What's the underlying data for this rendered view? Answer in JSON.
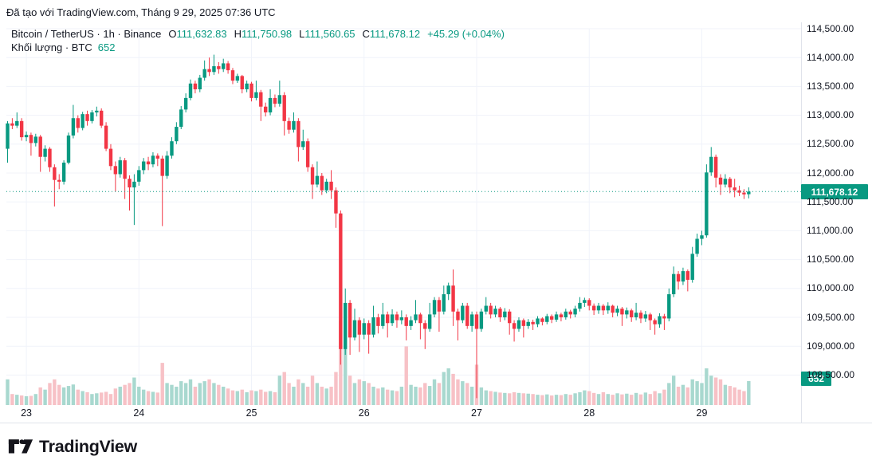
{
  "attribution": "Đã tạo với TradingView.com, Tháng 9 29, 2025 07:36 UTC",
  "legend": {
    "symbol_line": "Bitcoin / TetherUS · 1h · Binance",
    "o_label": "O",
    "o_value": "111,632.83",
    "h_label": "H",
    "h_value": "111,750.98",
    "l_label": "L",
    "l_value": "111,560.65",
    "c_label": "C",
    "c_value": "111,678.12",
    "change": "+45.29 (+0.04%)",
    "volume_label": "Khối lượng · BTC",
    "volume_value": "652"
  },
  "badges": {
    "price": "111,678.12",
    "volume": "652"
  },
  "logo_text": "TradingView",
  "colors": {
    "up": "#089981",
    "down": "#f23645",
    "vol_up": "#a8d8cf",
    "vol_down": "#f7c1c6",
    "grid": "#f0f3fa",
    "axis_text": "#131722",
    "badge": "#089981",
    "current_price_line": "#089981"
  },
  "chart_data": {
    "type": "candlestick",
    "title": "Bitcoin / TetherUS · 1h · Binance",
    "interval": "1h",
    "current_price": 111678.12,
    "current_volume_btc": 652,
    "y_axis": {
      "max": 114500,
      "min": 108500,
      "step": 500,
      "labels": [
        "114,500.00",
        "114,000.00",
        "113,500.00",
        "113,000.00",
        "112,500.00",
        "112,000.00",
        "111,500.00",
        "111,000.00",
        "110,500.00",
        "110,000.00",
        "109,500.00",
        "109,000.00",
        "108,500.00"
      ]
    },
    "x_axis": {
      "labels": [
        {
          "text": "23",
          "index": 4
        },
        {
          "text": "24",
          "index": 28
        },
        {
          "text": "25",
          "index": 52
        },
        {
          "text": "26",
          "index": 76
        },
        {
          "text": "27",
          "index": 100
        },
        {
          "text": "28",
          "index": 124
        },
        {
          "text": "29",
          "index": 148
        }
      ]
    },
    "candles_format": [
      "open",
      "high",
      "low",
      "close",
      "volume_btc"
    ],
    "candles": [
      [
        112420,
        112900,
        112180,
        112860,
        700
      ],
      [
        112860,
        112950,
        112760,
        112820,
        300
      ],
      [
        112820,
        113050,
        112780,
        112900,
        280
      ],
      [
        112900,
        112950,
        112560,
        112620,
        260
      ],
      [
        112620,
        112720,
        112550,
        112660,
        240
      ],
      [
        112660,
        112700,
        112300,
        112520,
        250
      ],
      [
        112520,
        112680,
        112460,
        112630,
        300
      ],
      [
        112630,
        112660,
        112020,
        112280,
        480
      ],
      [
        112280,
        112480,
        112200,
        112420,
        420
      ],
      [
        112420,
        112450,
        112020,
        112100,
        600
      ],
      [
        112100,
        112150,
        111420,
        111880,
        700
      ],
      [
        111880,
        111980,
        111720,
        111850,
        550
      ],
      [
        111850,
        112220,
        111800,
        112180,
        480
      ],
      [
        112180,
        112700,
        112150,
        112650,
        520
      ],
      [
        112650,
        113180,
        112600,
        112950,
        560
      ],
      [
        112950,
        113000,
        112700,
        112780,
        420
      ],
      [
        112780,
        113060,
        112740,
        113020,
        380
      ],
      [
        113020,
        113080,
        112820,
        112900,
        350
      ],
      [
        112900,
        113090,
        112860,
        113050,
        300
      ],
      [
        113050,
        113150,
        112980,
        113080,
        320
      ],
      [
        113080,
        113120,
        112780,
        112820,
        340
      ],
      [
        112820,
        112880,
        112380,
        112420,
        360
      ],
      [
        112420,
        112500,
        112050,
        112120,
        300
      ],
      [
        112120,
        112200,
        111680,
        111980,
        450
      ],
      [
        111980,
        112280,
        111920,
        112220,
        500
      ],
      [
        112220,
        112260,
        111550,
        111900,
        550
      ],
      [
        111900,
        111960,
        111350,
        111750,
        600
      ],
      [
        111750,
        111980,
        111100,
        111850,
        750
      ],
      [
        111850,
        112120,
        111780,
        112050,
        500
      ],
      [
        112050,
        112260,
        111980,
        112200,
        420
      ],
      [
        112200,
        112280,
        112050,
        112150,
        380
      ],
      [
        112150,
        112360,
        112100,
        112300,
        360
      ],
      [
        112300,
        112340,
        112120,
        112250,
        340
      ],
      [
        112250,
        112300,
        111080,
        111950,
        1150
      ],
      [
        111950,
        112380,
        111900,
        112300,
        600
      ],
      [
        112300,
        112620,
        112250,
        112550,
        550
      ],
      [
        112550,
        112880,
        112500,
        112800,
        500
      ],
      [
        112800,
        113160,
        112760,
        113100,
        650
      ],
      [
        113100,
        113380,
        113050,
        113300,
        600
      ],
      [
        113300,
        113620,
        113260,
        113550,
        700
      ],
      [
        113550,
        113600,
        113380,
        113450,
        500
      ],
      [
        113450,
        113700,
        113400,
        113650,
        600
      ],
      [
        113650,
        113950,
        113600,
        113800,
        650
      ],
      [
        113800,
        114000,
        113680,
        113750,
        700
      ],
      [
        113750,
        114050,
        113700,
        113850,
        600
      ],
      [
        113850,
        113920,
        113720,
        113800,
        550
      ],
      [
        113800,
        113980,
        113750,
        113900,
        500
      ],
      [
        113900,
        113940,
        113720,
        113780,
        450
      ],
      [
        113780,
        113820,
        113540,
        113600,
        400
      ],
      [
        113600,
        113720,
        113560,
        113680,
        380
      ],
      [
        113680,
        113700,
        113380,
        113450,
        420
      ],
      [
        113450,
        113600,
        113400,
        113550,
        350
      ],
      [
        113550,
        113580,
        113240,
        113300,
        400
      ],
      [
        113300,
        113600,
        113260,
        113400,
        380
      ],
      [
        113400,
        113440,
        112900,
        113150,
        420
      ],
      [
        113150,
        113220,
        112980,
        113050,
        360
      ],
      [
        113050,
        113450,
        113000,
        113300,
        380
      ],
      [
        113300,
        113360,
        113140,
        113200,
        350
      ],
      [
        113200,
        113600,
        113150,
        113350,
        800
      ],
      [
        113350,
        113400,
        112650,
        112900,
        900
      ],
      [
        112900,
        112960,
        112680,
        112750,
        600
      ],
      [
        112750,
        113050,
        112700,
        112900,
        500
      ],
      [
        112900,
        112950,
        112200,
        112450,
        700
      ],
      [
        112450,
        112750,
        112400,
        112550,
        600
      ],
      [
        112550,
        112600,
        112020,
        112100,
        500
      ],
      [
        112100,
        112150,
        111550,
        111800,
        800
      ],
      [
        111800,
        112200,
        111750,
        111950,
        600
      ],
      [
        111950,
        112000,
        111620,
        111700,
        500
      ],
      [
        111700,
        111900,
        111650,
        111850,
        450
      ],
      [
        111850,
        112050,
        111550,
        111700,
        500
      ],
      [
        111700,
        111750,
        111050,
        111300,
        900
      ],
      [
        111300,
        111350,
        108680,
        108950,
        2300
      ],
      [
        108950,
        110000,
        108850,
        109750,
        1600
      ],
      [
        109750,
        109800,
        108850,
        109150,
        800
      ],
      [
        109150,
        109650,
        109100,
        109450,
        600
      ],
      [
        109450,
        109500,
        108900,
        109200,
        700
      ],
      [
        109200,
        109480,
        109120,
        109400,
        650
      ],
      [
        109400,
        109450,
        108870,
        109200,
        600
      ],
      [
        109200,
        109700,
        109150,
        109500,
        500
      ],
      [
        109500,
        109560,
        109220,
        109350,
        450
      ],
      [
        109350,
        109750,
        109300,
        109550,
        480
      ],
      [
        109550,
        109600,
        109150,
        109400,
        420
      ],
      [
        109400,
        109640,
        109350,
        109550,
        400
      ],
      [
        109550,
        109600,
        109320,
        109450,
        380
      ],
      [
        109450,
        109620,
        109380,
        109500,
        500
      ],
      [
        109500,
        109550,
        109100,
        109350,
        1600
      ],
      [
        109350,
        109520,
        109280,
        109450,
        550
      ],
      [
        109450,
        109800,
        109400,
        109550,
        500
      ],
      [
        109550,
        109580,
        109120,
        109400,
        480
      ],
      [
        109400,
        109450,
        108950,
        109300,
        600
      ],
      [
        109300,
        109750,
        109250,
        109550,
        520
      ],
      [
        109550,
        109850,
        109500,
        109800,
        700
      ],
      [
        109800,
        109850,
        109250,
        109600,
        600
      ],
      [
        109600,
        110050,
        109550,
        109900,
        900
      ],
      [
        109900,
        110100,
        109800,
        110050,
        1000
      ],
      [
        110050,
        110330,
        109350,
        109600,
        850
      ],
      [
        109600,
        109650,
        109100,
        109450,
        700
      ],
      [
        109450,
        109750,
        109400,
        109700,
        650
      ],
      [
        109700,
        109750,
        109300,
        109350,
        600
      ],
      [
        109350,
        109600,
        109250,
        109550,
        500
      ],
      [
        109550,
        109600,
        108100,
        109300,
        1100
      ],
      [
        109300,
        109650,
        109250,
        109600,
        480
      ],
      [
        109600,
        109850,
        109550,
        109700,
        400
      ],
      [
        109700,
        109750,
        109480,
        109550,
        380
      ],
      [
        109550,
        109700,
        109500,
        109650,
        360
      ],
      [
        109650,
        109680,
        109420,
        109500,
        340
      ],
      [
        109500,
        109660,
        109450,
        109600,
        330
      ],
      [
        109600,
        109640,
        109200,
        109400,
        320
      ],
      [
        109400,
        109450,
        109080,
        109300,
        350
      ],
      [
        109300,
        109500,
        109250,
        109450,
        330
      ],
      [
        109450,
        109480,
        109150,
        109350,
        320
      ],
      [
        109350,
        109470,
        109300,
        109420,
        310
      ],
      [
        109420,
        109460,
        109280,
        109380,
        300
      ],
      [
        109380,
        109520,
        109330,
        109480,
        280
      ],
      [
        109480,
        109500,
        109360,
        109420,
        270
      ],
      [
        109420,
        109560,
        109380,
        109520,
        290
      ],
      [
        109520,
        109550,
        109400,
        109460,
        260
      ],
      [
        109460,
        109600,
        109420,
        109550,
        280
      ],
      [
        109550,
        109580,
        109430,
        109500,
        270
      ],
      [
        109500,
        109650,
        109460,
        109600,
        300
      ],
      [
        109600,
        109630,
        109480,
        109550,
        280
      ],
      [
        109550,
        109700,
        109500,
        109650,
        320
      ],
      [
        109650,
        109850,
        109600,
        109750,
        350
      ],
      [
        109750,
        109840,
        109680,
        109800,
        400
      ],
      [
        109800,
        109830,
        109620,
        109700,
        380
      ],
      [
        109700,
        109740,
        109540,
        109620,
        330
      ],
      [
        109620,
        109750,
        109560,
        109700,
        300
      ],
      [
        109700,
        109730,
        109540,
        109620,
        350
      ],
      [
        109620,
        109760,
        109560,
        109700,
        300
      ],
      [
        109700,
        109720,
        109500,
        109580,
        280
      ],
      [
        109580,
        109700,
        109520,
        109650,
        320
      ],
      [
        109650,
        109680,
        109350,
        109550,
        290
      ],
      [
        109550,
        109670,
        109480,
        109620,
        310
      ],
      [
        109620,
        109650,
        109420,
        109500,
        280
      ],
      [
        109500,
        109750,
        109450,
        109580,
        330
      ],
      [
        109580,
        109620,
        109400,
        109480,
        290
      ],
      [
        109480,
        109610,
        109420,
        109550,
        340
      ],
      [
        109550,
        109580,
        109280,
        109450,
        300
      ],
      [
        109450,
        109480,
        109200,
        109380,
        380
      ],
      [
        109380,
        109570,
        109320,
        109520,
        320
      ],
      [
        109520,
        109560,
        109280,
        109480,
        420
      ],
      [
        109480,
        110000,
        109430,
        109900,
        600
      ],
      [
        109900,
        110380,
        109850,
        110250,
        800
      ],
      [
        110250,
        110300,
        109980,
        110120,
        500
      ],
      [
        110120,
        110360,
        110060,
        110300,
        550
      ],
      [
        110300,
        110330,
        109950,
        110150,
        480
      ],
      [
        110150,
        110720,
        110100,
        110600,
        700
      ],
      [
        110600,
        110950,
        110550,
        110860,
        650
      ],
      [
        110860,
        111000,
        110750,
        110920,
        600
      ],
      [
        110920,
        112150,
        110880,
        112010,
        1000
      ],
      [
        112010,
        112450,
        111950,
        112280,
        800
      ],
      [
        112280,
        112320,
        111750,
        111920,
        750
      ],
      [
        111920,
        111980,
        111620,
        111800,
        700
      ],
      [
        111800,
        111980,
        111750,
        111900,
        550
      ],
      [
        111900,
        111930,
        111650,
        111750,
        520
      ],
      [
        111750,
        111900,
        111580,
        111700,
        480
      ],
      [
        111700,
        111780,
        111600,
        111660,
        420
      ],
      [
        111660,
        111720,
        111550,
        111630,
        380
      ],
      [
        111633,
        111751,
        111561,
        111678,
        652
      ]
    ]
  }
}
